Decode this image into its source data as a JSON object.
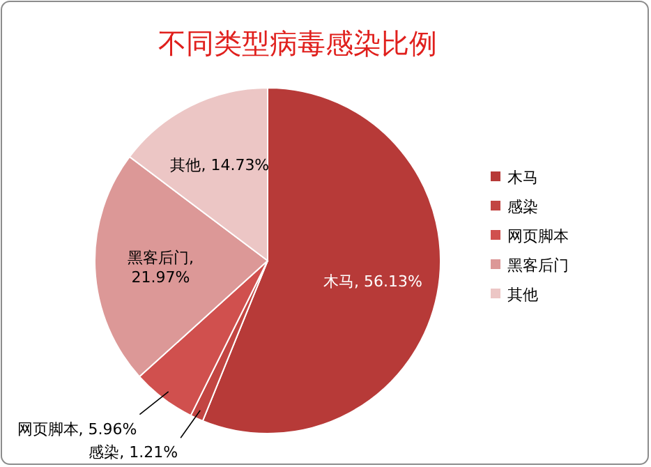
{
  "chart_data": {
    "type": "pie",
    "title": "不同类型病毒感染比例",
    "categories": [
      "木马",
      "感染",
      "网页脚本",
      "黑客后门",
      "其他"
    ],
    "values": [
      56.13,
      1.21,
      5.96,
      21.97,
      14.73
    ],
    "colors": [
      "#b73a38",
      "#c24542",
      "#d0504e",
      "#dc9897",
      "#ecc6c5"
    ],
    "value_labels": [
      "木马, 56.13%",
      "感染, 1.21%",
      "网页脚本, 5.96%",
      "黑客后门, 21.97%",
      "其他, 14.73%"
    ],
    "legend": "right"
  }
}
